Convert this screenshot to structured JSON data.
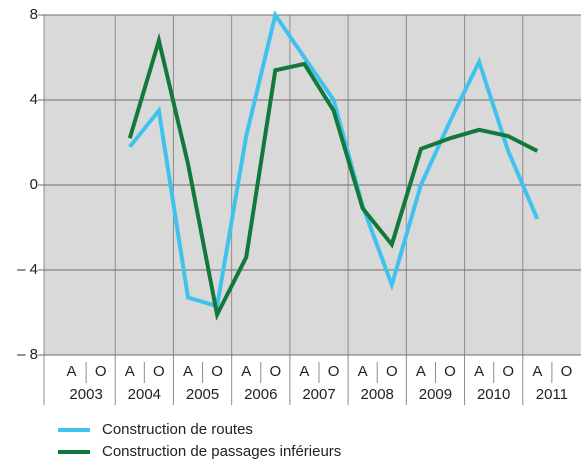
{
  "chart_data": {
    "type": "line",
    "categories": [
      "A",
      "O",
      "A",
      "O",
      "A",
      "O",
      "A",
      "O",
      "A",
      "O",
      "A",
      "O",
      "A",
      "O",
      "A",
      "O",
      "A",
      "O"
    ],
    "years": [
      "2003",
      "2004",
      "2005",
      "2006",
      "2007",
      "2008",
      "2009",
      "2010",
      "2011"
    ],
    "series": [
      {
        "name": "Construction de routes",
        "color": "#3fc3ee",
        "values": [
          null,
          null,
          1.8,
          3.5,
          -5.3,
          -5.7,
          2.3,
          8.0,
          6.0,
          4.0,
          -1.0,
          -4.7,
          0.0,
          3.0,
          5.8,
          1.6,
          -1.6,
          null
        ]
      },
      {
        "name": "Construction de passages inférieurs",
        "color": "#13793a",
        "values": [
          null,
          null,
          2.2,
          6.8,
          1.0,
          -6.1,
          -3.4,
          5.4,
          5.7,
          3.5,
          -1.1,
          -2.8,
          1.7,
          2.2,
          2.6,
          2.3,
          1.6,
          null
        ]
      }
    ],
    "ylim": [
      -8,
      8
    ],
    "yticks": [
      8,
      4,
      0,
      {
        "value": -4,
        "label": "– 4"
      },
      {
        "value": -8,
        "label": "– 8"
      }
    ],
    "grid": true
  }
}
